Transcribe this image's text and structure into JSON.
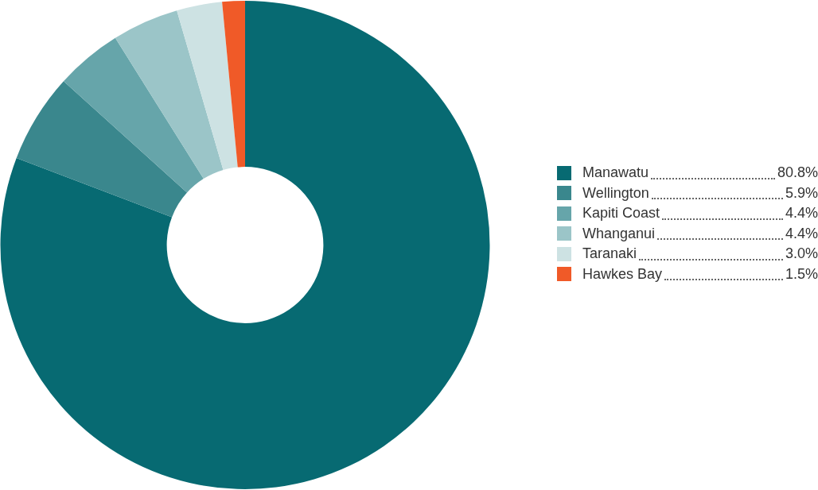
{
  "chart_data": {
    "type": "donut",
    "categories": [
      "Manawatu",
      "Wellington",
      "Kapiti Coast",
      "Whanganui",
      "Taranaki",
      "Hawkes Bay"
    ],
    "values": [
      80.8,
      5.9,
      4.4,
      4.4,
      3.0,
      1.5
    ],
    "value_labels": [
      "80.8%",
      "5.9%",
      "4.4%",
      "4.4%",
      "3.0%",
      "1.5%"
    ],
    "colors": [
      "#076a72",
      "#3a878d",
      "#66a5aa",
      "#9bc5c8",
      "#cde2e3",
      "#f05a28"
    ],
    "legend": "right"
  }
}
